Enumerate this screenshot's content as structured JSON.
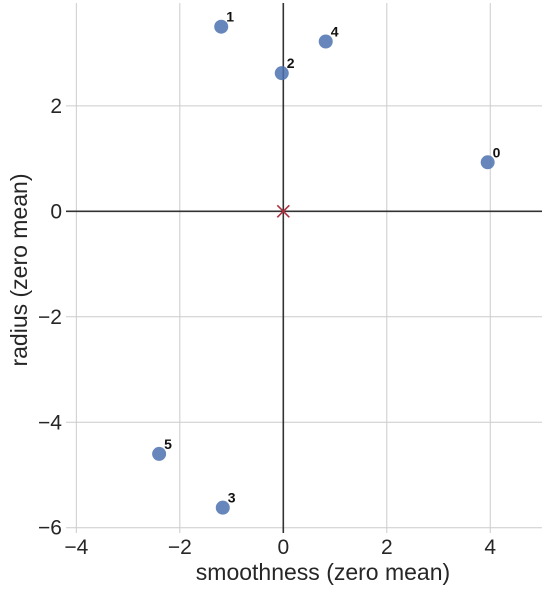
{
  "chart_data": {
    "type": "scatter",
    "xlabel": "smoothness (zero mean)",
    "ylabel": "radius (zero mean)",
    "xlim": [
      -4.2,
      5.0
    ],
    "ylim": [
      -6.1,
      3.95
    ],
    "x_ticks": [
      -4,
      -2,
      0,
      2,
      4
    ],
    "y_ticks": [
      -6,
      -4,
      -2,
      0,
      2
    ],
    "x_tick_labels": [
      "−4",
      "−2",
      "0",
      "2",
      "4"
    ],
    "y_tick_labels": [
      "−6",
      "−4",
      "−2",
      "0",
      "2"
    ],
    "grid": true,
    "points": [
      {
        "label": "0",
        "x": 3.95,
        "y": 0.93
      },
      {
        "label": "1",
        "x": -1.2,
        "y": 3.5
      },
      {
        "label": "2",
        "x": -0.03,
        "y": 2.62
      },
      {
        "label": "3",
        "x": -1.17,
        "y": -5.62
      },
      {
        "label": "4",
        "x": 0.82,
        "y": 3.22
      },
      {
        "label": "5",
        "x": -2.4,
        "y": -4.6
      }
    ],
    "center_marker": {
      "x": 0,
      "y": 0,
      "shape": "x",
      "color": "#b03040"
    },
    "point_color": "#4c72b0",
    "zero_lines": true
  }
}
